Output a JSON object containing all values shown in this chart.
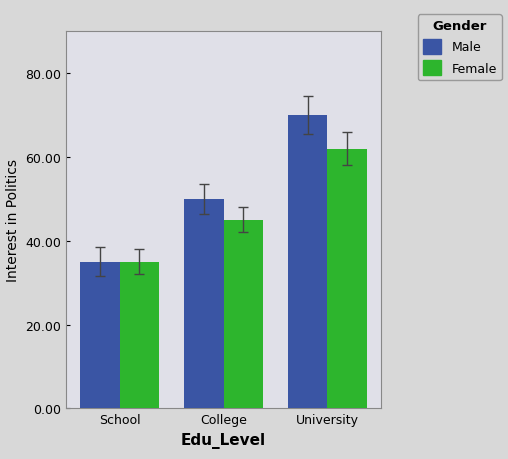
{
  "categories": [
    "School",
    "College",
    "University"
  ],
  "male_values": [
    35.0,
    50.0,
    70.0
  ],
  "female_values": [
    35.0,
    45.0,
    62.0
  ],
  "male_errors": [
    3.5,
    3.5,
    4.5
  ],
  "female_errors": [
    3.0,
    3.0,
    4.0
  ],
  "male_color": "#3A55A4",
  "female_color": "#2DB52D",
  "bar_width": 0.38,
  "ylim": [
    0,
    90
  ],
  "yticks": [
    0.0,
    20.0,
    40.0,
    60.0,
    80.0
  ],
  "ylabel": "Interest in Politics",
  "xlabel": "Edu_Level",
  "legend_title": "Gender",
  "legend_labels": [
    "Male",
    "Female"
  ],
  "fig_bg_color": "#D8D8D8",
  "plot_bg_color": "#E0E0E8",
  "label_fontsize": 10,
  "tick_fontsize": 9,
  "legend_fontsize": 9,
  "xlabel_fontweight": "bold",
  "ylabel_fontweight": "normal"
}
